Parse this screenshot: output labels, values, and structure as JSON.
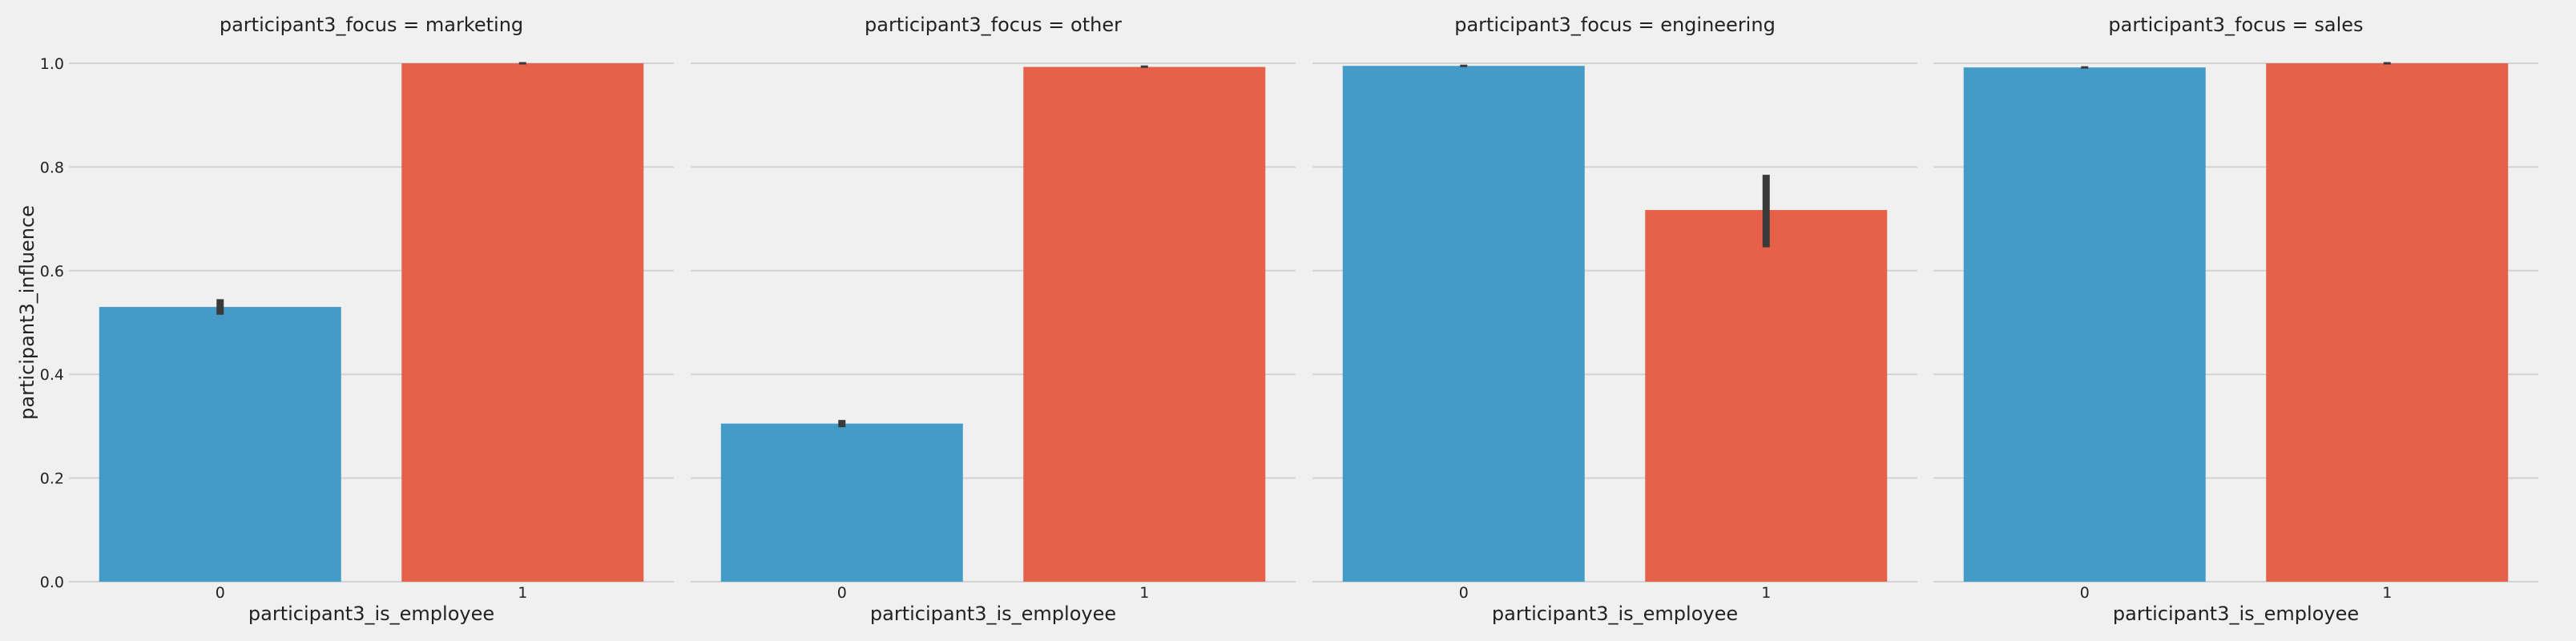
{
  "chart_data": {
    "type": "bar",
    "facet_label": "participant3_focus",
    "xlabel": "participant3_is_employee",
    "ylabel": "participant3_influence",
    "ylim": [
      0,
      1.0
    ],
    "yticks": [
      "0.0",
      "0.2",
      "0.4",
      "0.6",
      "0.8",
      "1.0"
    ],
    "grid": true,
    "colors": {
      "0": "#459bc8",
      "1": "#e5614a",
      "error": "#3a3a3a",
      "grid": "#d3d3d3",
      "background": "#f0f0f0"
    },
    "panels": [
      {
        "title": "participant3_focus = marketing",
        "categories": [
          "0",
          "1"
        ],
        "values": [
          0.53,
          1.0
        ],
        "ci": [
          [
            0.515,
            0.545
          ],
          [
            1.0,
            1.0
          ]
        ]
      },
      {
        "title": "participant3_focus = other",
        "categories": [
          "0",
          "1"
        ],
        "values": [
          0.305,
          0.993
        ],
        "ci": [
          [
            0.298,
            0.312
          ],
          [
            0.992,
            0.995
          ]
        ]
      },
      {
        "title": "participant3_focus = engineering",
        "categories": [
          "0",
          "1"
        ],
        "values": [
          0.995,
          0.717
        ],
        "ci": [
          [
            0.993,
            0.997
          ],
          [
            0.645,
            0.785
          ]
        ]
      },
      {
        "title": "participant3_focus = sales",
        "categories": [
          "0",
          "1"
        ],
        "values": [
          0.992,
          1.0
        ],
        "ci": [
          [
            0.992,
            0.992
          ],
          [
            1.0,
            1.0
          ]
        ]
      }
    ]
  }
}
